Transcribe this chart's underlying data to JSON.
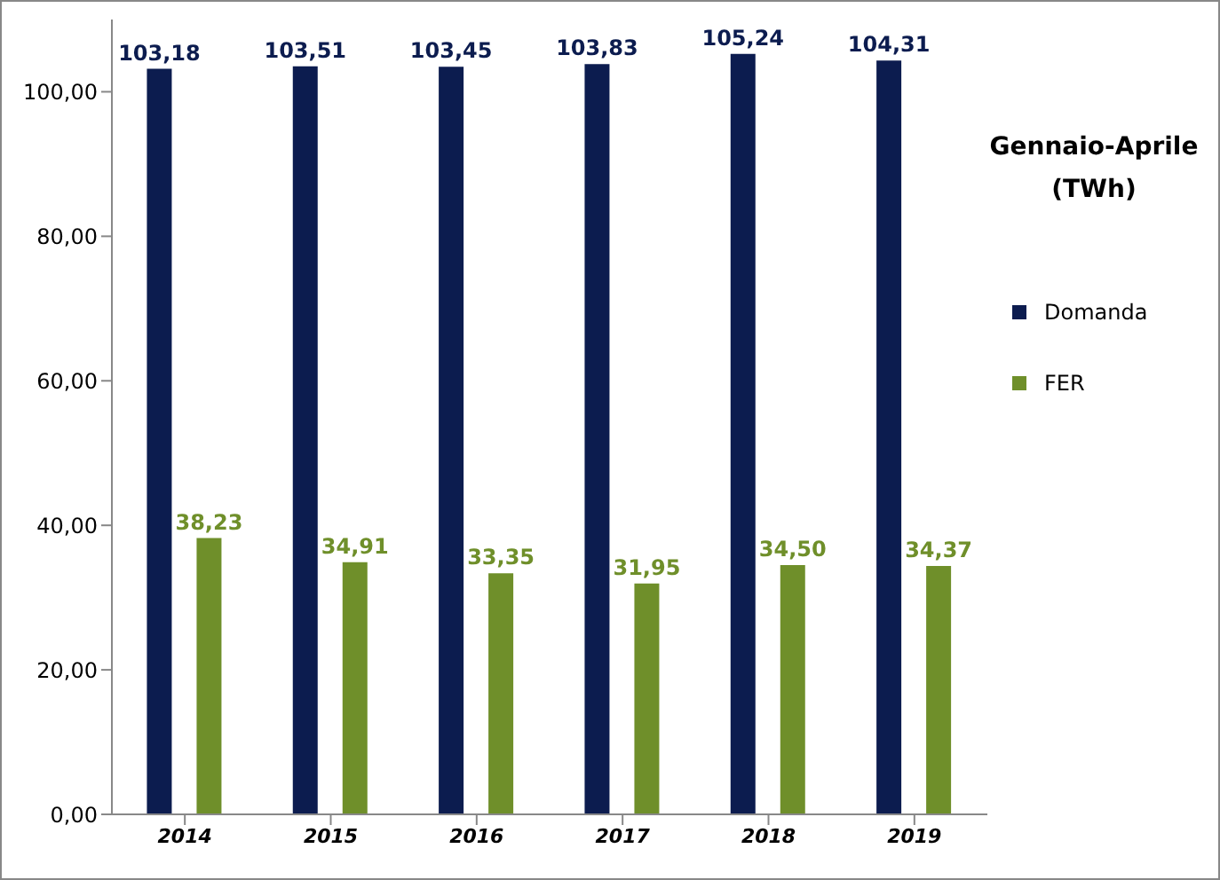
{
  "chart_data": {
    "type": "bar",
    "legend_title": "Gennaio-Aprile\n(TWh)",
    "categories": [
      "2014",
      "2015",
      "2016",
      "2017",
      "2018",
      "2019"
    ],
    "series": [
      {
        "name": "Domanda",
        "color": "#0c1c4f",
        "values": [
          103.18,
          103.51,
          103.45,
          103.83,
          105.24,
          104.31
        ],
        "value_labels": [
          "103,18",
          "103,51",
          "103,45",
          "103,83",
          "105,24",
          "104,31"
        ]
      },
      {
        "name": "FER",
        "color": "#6f8f2a",
        "values": [
          38.23,
          34.91,
          33.35,
          31.95,
          34.5,
          34.37
        ],
        "value_labels": [
          "38,23",
          "34,91",
          "33,35",
          "31,95",
          "34,50",
          "34,37"
        ]
      }
    ],
    "ylim": [
      0,
      110
    ],
    "yticks": [
      {
        "value": 0,
        "label": "0,00"
      },
      {
        "value": 20,
        "label": "20,00"
      },
      {
        "value": 40,
        "label": "40,00"
      },
      {
        "value": 60,
        "label": "60,00"
      },
      {
        "value": 80,
        "label": "80,00"
      },
      {
        "value": 100,
        "label": "100,00"
      }
    ],
    "grid": false,
    "legend": "right"
  }
}
